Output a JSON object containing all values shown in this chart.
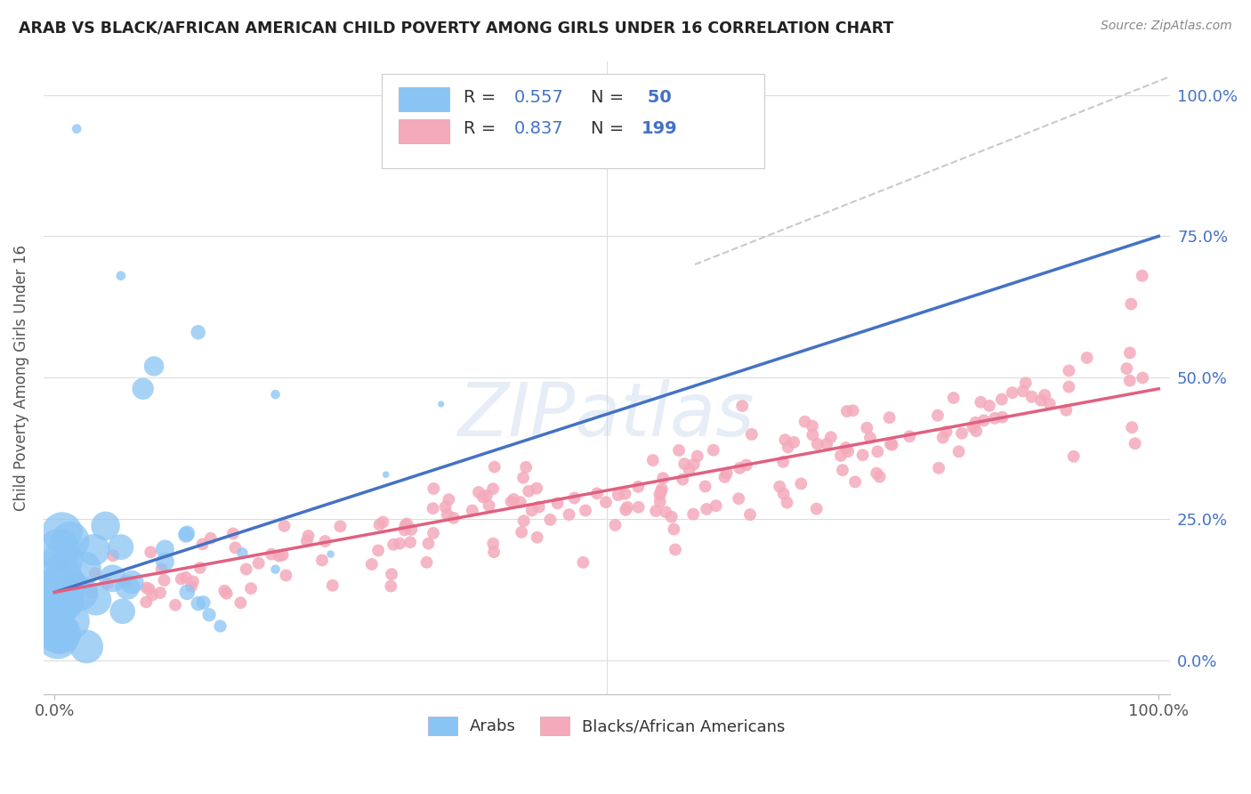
{
  "title": "ARAB VS BLACK/AFRICAN AMERICAN CHILD POVERTY AMONG GIRLS UNDER 16 CORRELATION CHART",
  "source": "Source: ZipAtlas.com",
  "ylabel": "Child Poverty Among Girls Under 16",
  "watermark": "ZIPatlas",
  "legend_arab_R": "0.557",
  "legend_arab_N": "50",
  "legend_black_R": "0.837",
  "legend_black_N": "199",
  "arab_color": "#89C4F4",
  "black_color": "#F4AABB",
  "arab_line_color": "#4472C4",
  "black_line_color": "#E06080",
  "diagonal_color": "#C0C0C0",
  "background_color": "#FFFFFF",
  "title_color": "#222222",
  "source_color": "#888888",
  "right_tick_color": "#4472C4",
  "label_color": "#555555",
  "legend_num_color": "#4472C4",
  "legend_text_color": "#333333",
  "grid_color": "#DDDDDD",
  "bottom_spine_color": "#BBBBBB"
}
